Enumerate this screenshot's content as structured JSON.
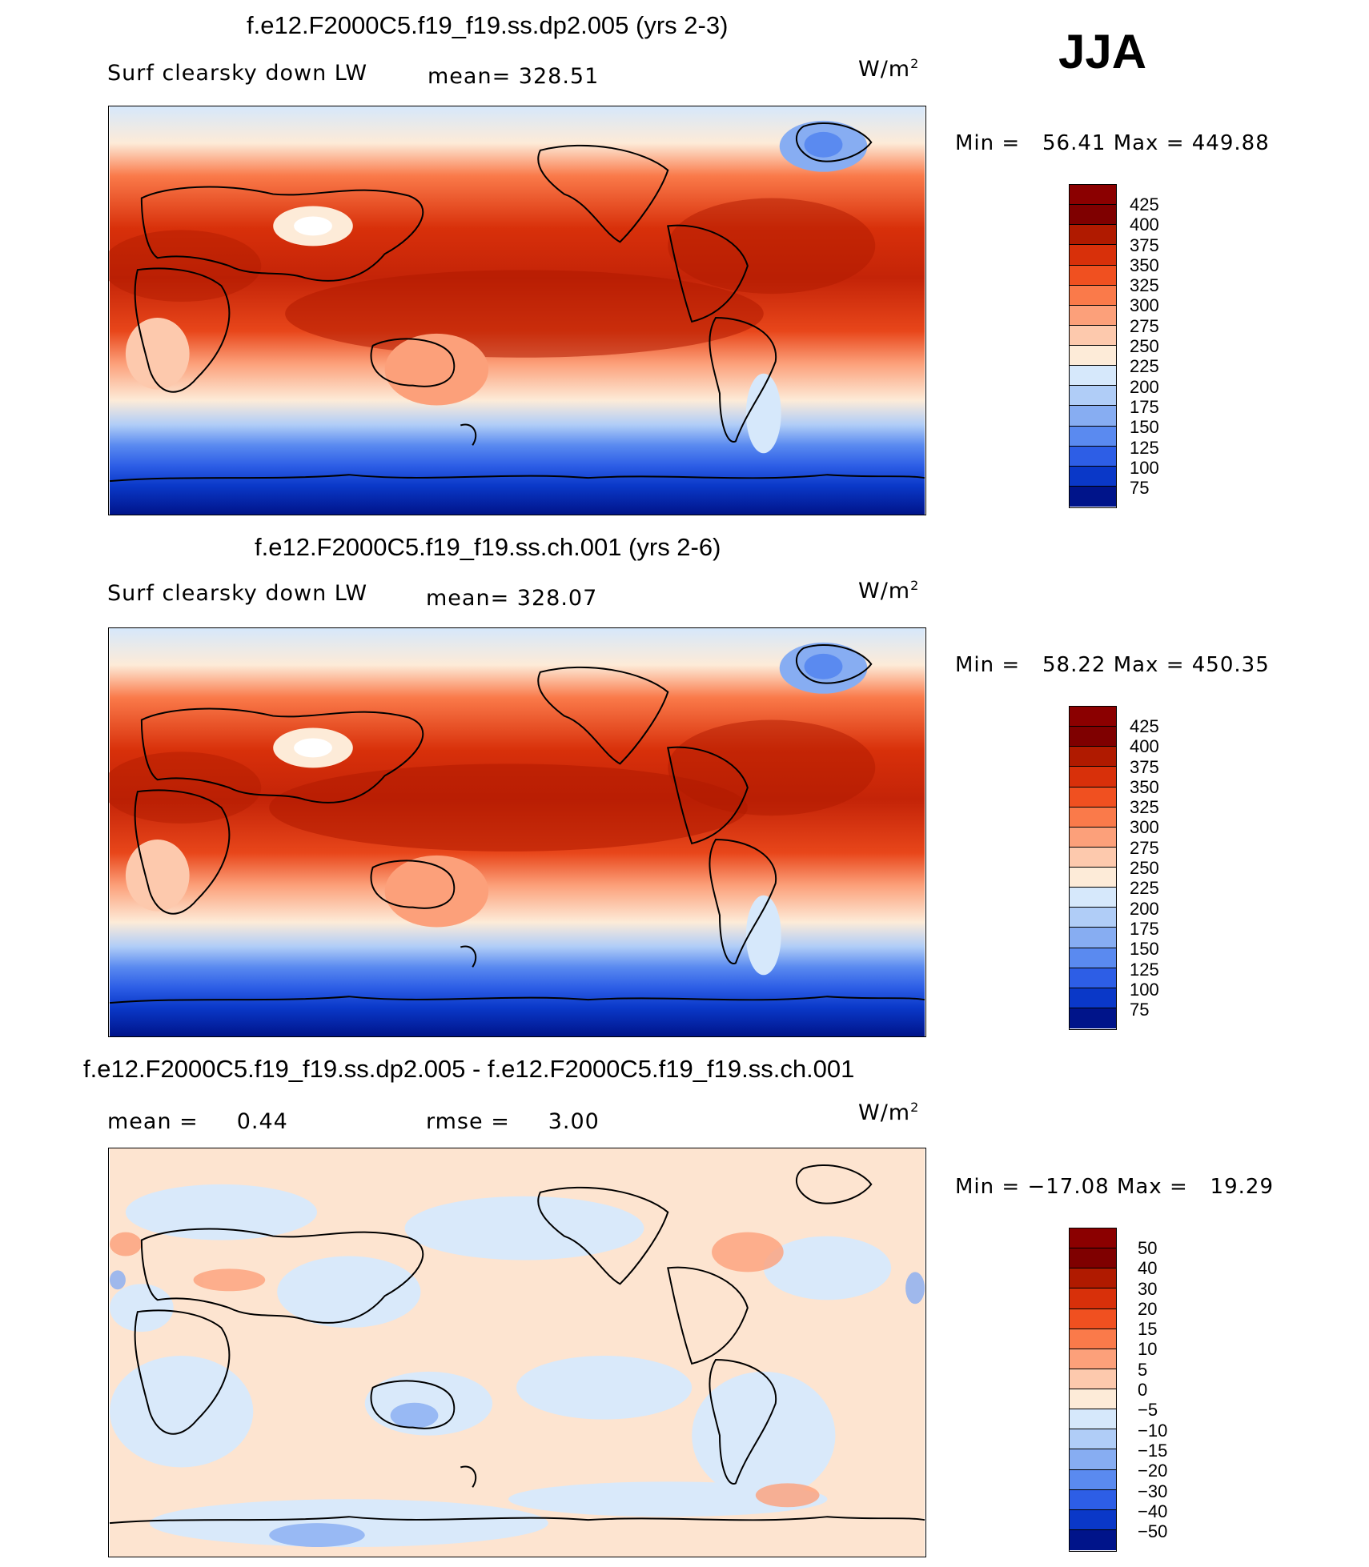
{
  "season": "JJA",
  "panels": [
    {
      "title": "f.e12.F2000C5.f19_f19.ss.dp2.005 (yrs 2-3)",
      "left_label": "Surf clearsky down LW",
      "stat_label": "mean=",
      "stat_value": "328.51",
      "units": "W/m",
      "units_exp": "2",
      "min_label": "Min =",
      "min_value": "56.41",
      "max_label": "Max =",
      "max_value": "449.88",
      "levels": [
        "425",
        "400",
        "375",
        "350",
        "325",
        "300",
        "275",
        "250",
        "225",
        "200",
        "175",
        "150",
        "125",
        "100",
        "75"
      ]
    },
    {
      "title": "f.e12.F2000C5.f19_f19.ss.ch.001 (yrs 2-6)",
      "left_label": "Surf clearsky down LW",
      "stat_label": "mean=",
      "stat_value": "328.07",
      "units": "W/m",
      "units_exp": "2",
      "min_label": "Min =",
      "min_value": "58.22",
      "max_label": "Max =",
      "max_value": "450.35",
      "levels": [
        "425",
        "400",
        "375",
        "350",
        "325",
        "300",
        "275",
        "250",
        "225",
        "200",
        "175",
        "150",
        "125",
        "100",
        "75"
      ]
    },
    {
      "title": "f.e12.F2000C5.f19_f19.ss.dp2.005 - f.e12.F2000C5.f19_f19.ss.ch.001",
      "left_label": "mean =",
      "left_value": "0.44",
      "stat_label": "rmse =",
      "stat_value": "3.00",
      "units": "W/m",
      "units_exp": "2",
      "min_label": "Min =",
      "min_value": "−17.08",
      "max_label": "Max =",
      "max_value": "19.29",
      "levels": [
        "50",
        "40",
        "30",
        "20",
        "15",
        "10",
        "5",
        "0",
        "−5",
        "−10",
        "−15",
        "−20",
        "−30",
        "−40",
        "−50"
      ]
    }
  ],
  "colors": {
    "scale": [
      "#7f0000",
      "#b01a00",
      "#d8300a",
      "#f05020",
      "#fa7a4a",
      "#fca07a",
      "#fdc9ad",
      "#fdebd8",
      "#d6e8fb",
      "#b0cdf7",
      "#87adf2",
      "#5a8af0",
      "#2d5ee6",
      "#0a38c8",
      "#00148a"
    ],
    "diff_pos": "#fde4d0",
    "diff_neg": "#d9e9fa"
  }
}
